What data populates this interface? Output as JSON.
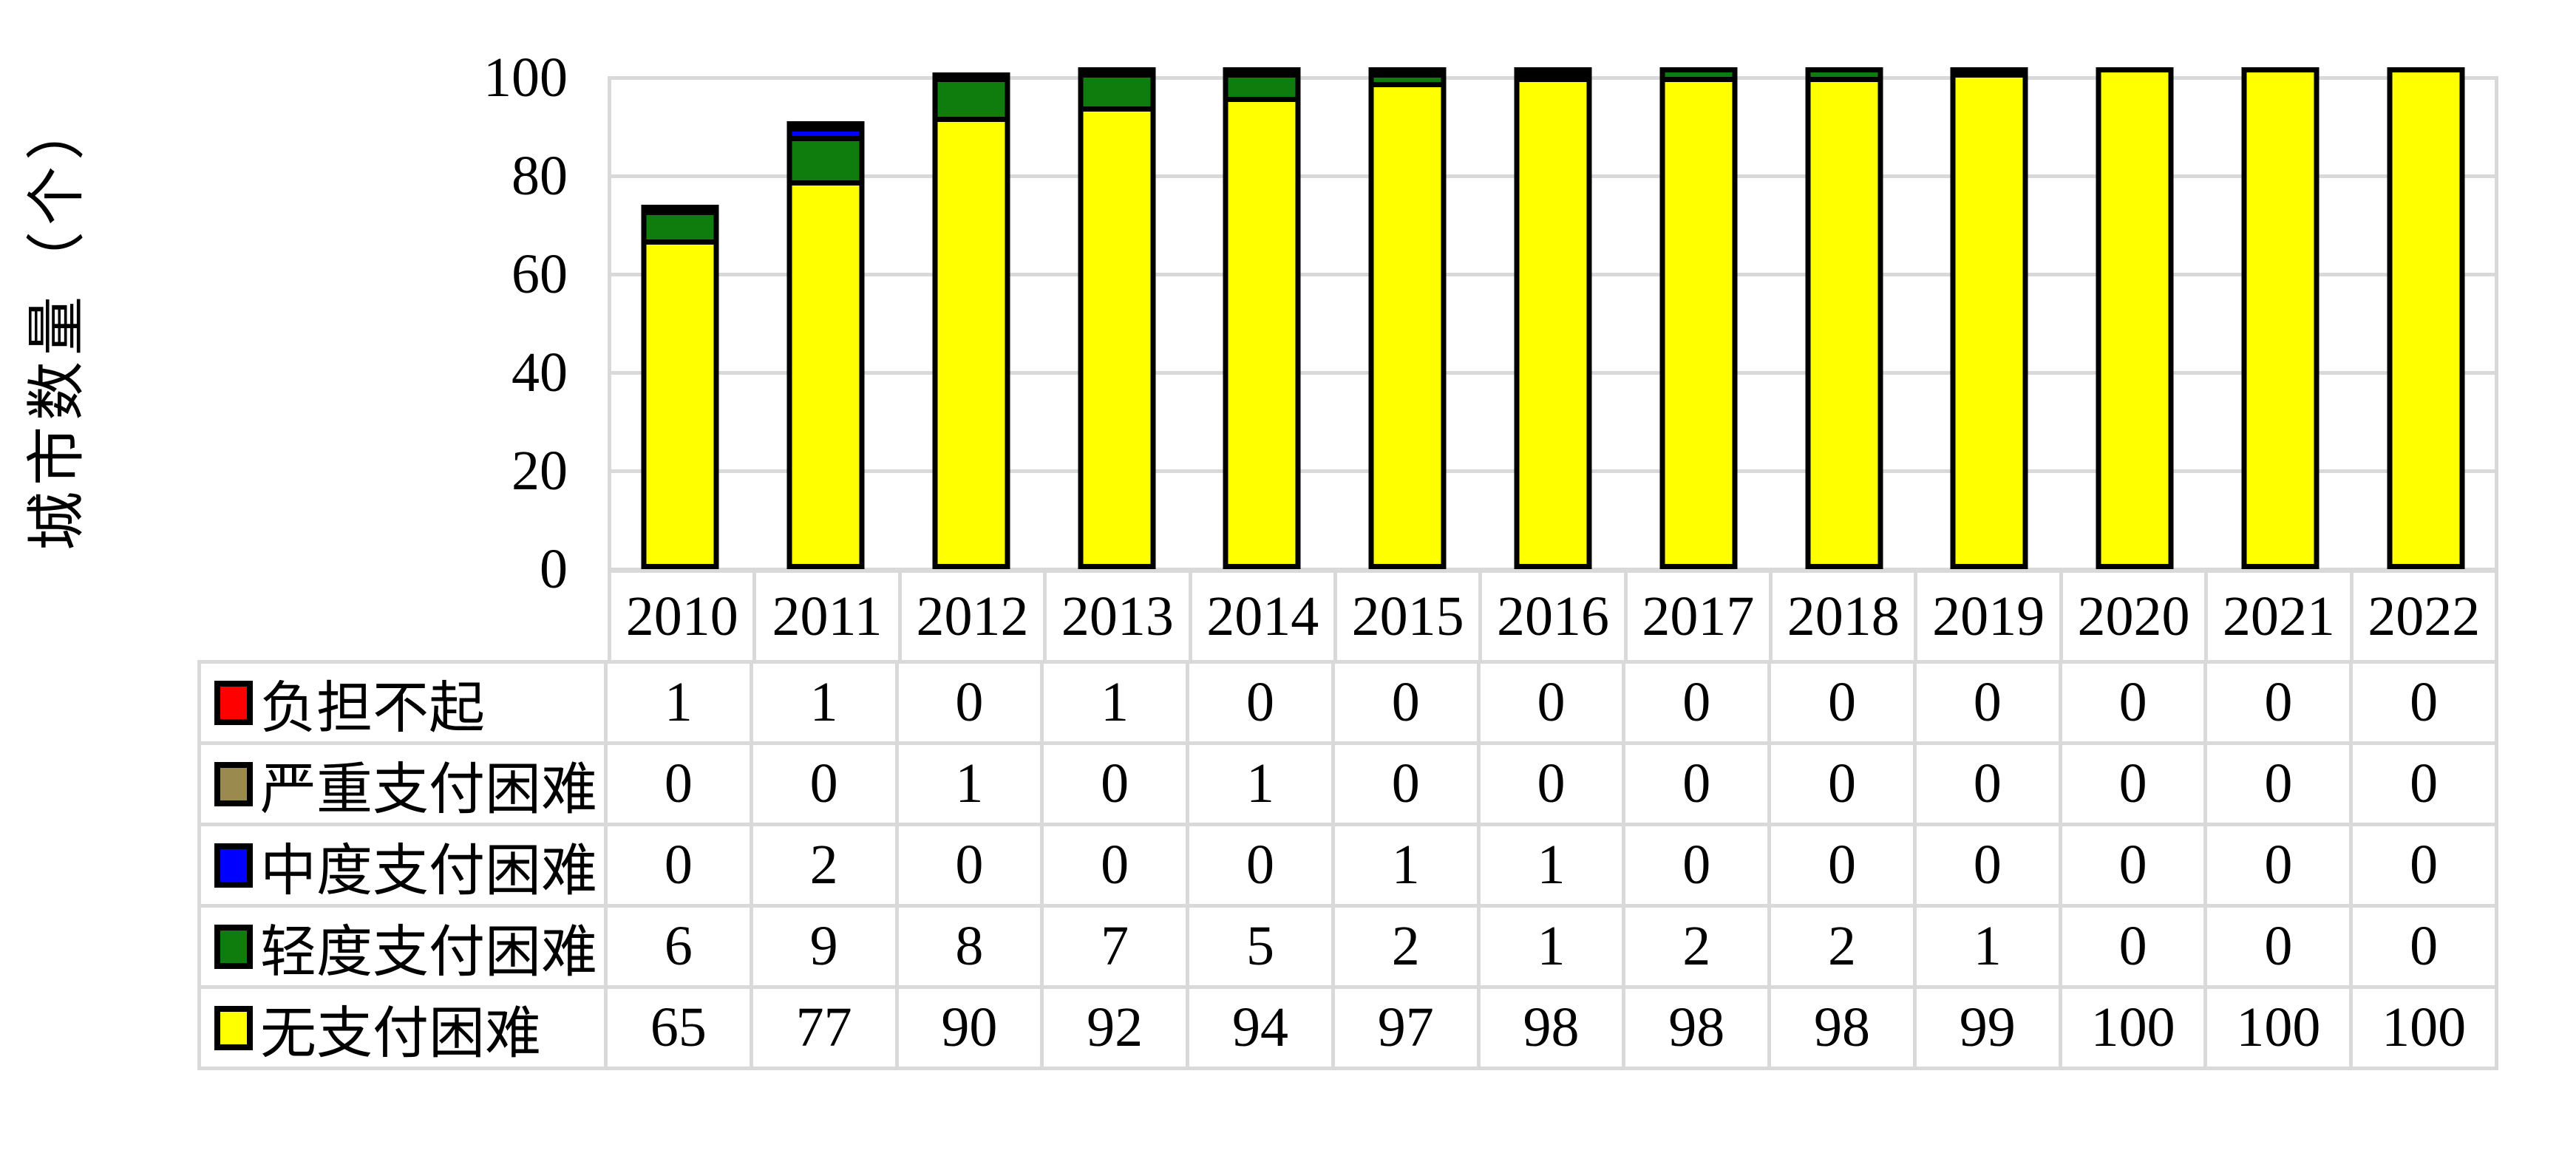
{
  "chart_data": {
    "type": "bar",
    "stacked": true,
    "ylabel": "城市数量（个）",
    "categories": [
      "2010",
      "2011",
      "2012",
      "2013",
      "2014",
      "2015",
      "2016",
      "2017",
      "2018",
      "2019",
      "2020",
      "2021",
      "2022"
    ],
    "series": [
      {
        "name": "负担不起",
        "color": "#FF0000",
        "values": [
          1,
          1,
          0,
          1,
          0,
          0,
          0,
          0,
          0,
          0,
          0,
          0,
          0
        ]
      },
      {
        "name": "严重支付困难",
        "color": "#9A8A4E",
        "values": [
          0,
          0,
          1,
          0,
          1,
          0,
          0,
          0,
          0,
          0,
          0,
          0,
          0
        ]
      },
      {
        "name": "中度支付困难",
        "color": "#0000FF",
        "values": [
          0,
          2,
          0,
          0,
          0,
          1,
          1,
          0,
          0,
          0,
          0,
          0,
          0
        ]
      },
      {
        "name": "轻度支付困难",
        "color": "#0E7D0E",
        "values": [
          6,
          9,
          8,
          7,
          5,
          2,
          1,
          2,
          2,
          1,
          0,
          0,
          0
        ]
      },
      {
        "name": "无支付困难",
        "color": "#FFFF00",
        "values": [
          65,
          77,
          90,
          92,
          94,
          97,
          98,
          98,
          98,
          99,
          100,
          100,
          100
        ]
      }
    ],
    "y_ticks": [
      0,
      20,
      40,
      60,
      80,
      100
    ],
    "ylim": [
      0,
      100
    ],
    "grid": true,
    "legend_position": "table-left"
  },
  "colors": {
    "gridline": "#D9D9D9",
    "bar_border": "#000000",
    "text": "#000000",
    "background": "#FFFFFF"
  }
}
